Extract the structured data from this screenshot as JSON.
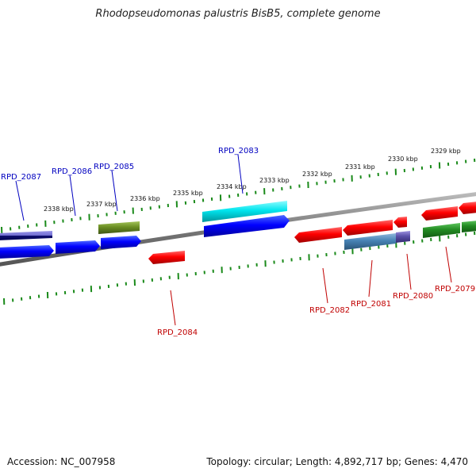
{
  "title": "Rhodopseudomonas palustris BisB5, complete genome",
  "footer": {
    "accession": "Accession: NC_007958",
    "summary": "Topology: circular; Length: 4,892,717 bp; Genes: 4,470"
  },
  "ticks": [
    "2329 kbp",
    "2330 kbp",
    "2331 kbp",
    "2332 kbp",
    "2333 kbp",
    "2334 kbp",
    "2335 kbp",
    "2336 kbp",
    "2337 kbp",
    "2338 kbp"
  ],
  "gene_labels": {
    "top": [
      "RPD_2087",
      "RPD_2086",
      "RPD_2085",
      "RPD_2083"
    ],
    "bottom": [
      "RPD_2084",
      "RPD_2082",
      "RPD_2081",
      "RPD_2080",
      "RPD_2079"
    ]
  },
  "colors": {
    "forward_gene": "#0000ff",
    "reverse_gene": "#ff0000",
    "rna_gene": "#00e5ee",
    "olive_gene": "#6b8e23",
    "green_gene": "#228b22",
    "steel_gene": "#4682b4",
    "slate_gene": "#5a4fa8",
    "top_label": "#0000c0",
    "bottom_label": "#c00000",
    "tick": "#1a8a1a",
    "backbone": "#808080"
  }
}
